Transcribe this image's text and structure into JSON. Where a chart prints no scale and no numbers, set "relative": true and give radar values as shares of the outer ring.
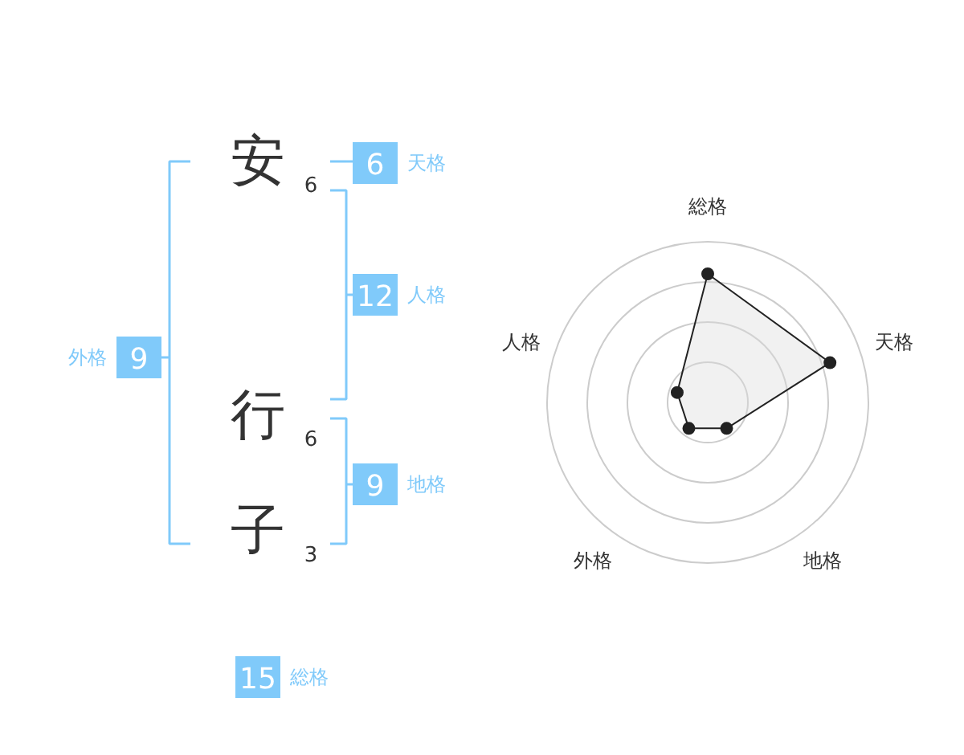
{
  "chart_data": [
    {
      "type": "other",
      "categories": [
        "安",
        "行",
        "子",
        "天格",
        "人格",
        "地格",
        "外格",
        "総格"
      ],
      "values": [
        6,
        6,
        3,
        6,
        12,
        9,
        9,
        15
      ],
      "data_labels": true,
      "colors": [
        "#333333",
        "#333333",
        "#333333",
        "#80cafa",
        "#80cafa",
        "#80cafa",
        "#80cafa",
        "#80cafa"
      ]
    },
    {
      "type": "radar",
      "relative": true,
      "categories": [
        "総格",
        "天格",
        "地格",
        "外格",
        "人格"
      ],
      "series": [
        {
          "color": "#222222",
          "values": [
            0.8,
            0.8,
            0.2,
            0.2,
            0.2
          ]
        }
      ],
      "marker": "circle"
    }
  ]
}
